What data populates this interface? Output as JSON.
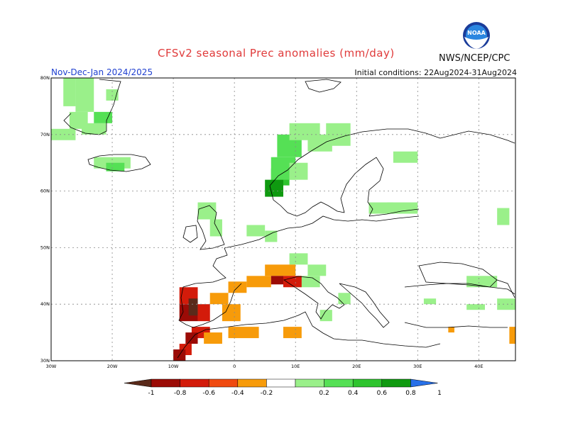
{
  "title": "CFSv2 seasonal Prec anomalies (mm/day)",
  "period": "Nov-Dec-Jan 2024/2025",
  "initial_conditions": "Initial conditions: 22Aug2024-31Aug2024",
  "agency": "NWS/NCEP/CPC",
  "logo_text": "NOAA",
  "axes": {
    "lon_labels": [
      "30W",
      "20W",
      "10W",
      "0",
      "10E",
      "20E",
      "30E",
      "40E"
    ],
    "lat_labels": [
      "30N",
      "40N",
      "50N",
      "60N",
      "70N",
      "80N"
    ],
    "lon_values": [
      -30,
      -20,
      -10,
      0,
      10,
      20,
      30,
      40
    ],
    "lat_values": [
      30,
      40,
      50,
      60,
      70,
      80
    ]
  },
  "colorbar": {
    "labels": [
      "-1",
      "-0.8",
      "-0.6",
      "-0.4",
      "-0.2",
      "0.2",
      "0.4",
      "0.6",
      "0.8",
      "1"
    ],
    "colors": [
      "#5a2a1a",
      "#9b0b06",
      "#d31b0a",
      "#f04a10",
      "#f79b0a",
      "#ffffff",
      "#9af08a",
      "#55e055",
      "#2ec42e",
      "#0f9a10",
      "#2870e8"
    ]
  },
  "chart_data": {
    "type": "heatmap",
    "title": "CFSv2 seasonal Prec anomalies (mm/day)",
    "xlim": [
      -30,
      46
    ],
    "ylim": [
      30,
      80
    ],
    "grid": true,
    "note_cells": "cells are [lon_west, lat_south, lon_east, lat_north, anomaly_mm_per_day]",
    "cells": [
      [
        -28,
        75,
        -26,
        80,
        0.3
      ],
      [
        -26,
        74,
        -23,
        80,
        0.3
      ],
      [
        -27,
        71,
        -24,
        74,
        0.3
      ],
      [
        -25,
        70,
        -21,
        72,
        0.3
      ],
      [
        -30,
        69,
        -26,
        71,
        0.3
      ],
      [
        -21,
        76,
        -19,
        78,
        0.3
      ],
      [
        -23,
        72,
        -20,
        74,
        0.4
      ],
      [
        -23,
        64,
        -17,
        66,
        0.3
      ],
      [
        -21,
        63.5,
        -18,
        65,
        0.4
      ],
      [
        7,
        66,
        11,
        70,
        0.4
      ],
      [
        9,
        69,
        14,
        72,
        0.3
      ],
      [
        12,
        67,
        16,
        70,
        0.3
      ],
      [
        15,
        68,
        19,
        72,
        0.3
      ],
      [
        6,
        61,
        9,
        64,
        0.6
      ],
      [
        5,
        59,
        8,
        62,
        0.8
      ],
      [
        6,
        62,
        10,
        66,
        0.4
      ],
      [
        9,
        62,
        12,
        65,
        0.3
      ],
      [
        26,
        65,
        30,
        67,
        0.3
      ],
      [
        22,
        56,
        26,
        58,
        0.3
      ],
      [
        25,
        56,
        30,
        58,
        0.3
      ],
      [
        43,
        54,
        45,
        57,
        0.3
      ],
      [
        -6,
        55,
        -3,
        58,
        0.3
      ],
      [
        -4,
        52,
        -2,
        55,
        0.3
      ],
      [
        2,
        52,
        5,
        54,
        0.3
      ],
      [
        5,
        51,
        7,
        53,
        0.3
      ],
      [
        9,
        47,
        12,
        49,
        0.3
      ],
      [
        12,
        45,
        15,
        47,
        0.3
      ],
      [
        10,
        43,
        14,
        45,
        0.3
      ],
      [
        17,
        40,
        19,
        42,
        0.3
      ],
      [
        14,
        37,
        16,
        39,
        0.3
      ],
      [
        38,
        43,
        43,
        45,
        0.3
      ],
      [
        31,
        40,
        33,
        41,
        0.3
      ],
      [
        38,
        39,
        41,
        40,
        0.3
      ],
      [
        43,
        39,
        46,
        41,
        0.3
      ],
      [
        5,
        45,
        10,
        47,
        -0.3
      ],
      [
        2,
        43,
        6,
        45,
        -0.3
      ],
      [
        8,
        43,
        11,
        45,
        -0.5
      ],
      [
        6,
        43.5,
        8,
        45,
        -0.7
      ],
      [
        -1,
        42,
        2,
        44,
        -0.3
      ],
      [
        -9,
        40,
        -6,
        43,
        -0.6
      ],
      [
        -9,
        37,
        -6,
        40,
        -0.8
      ],
      [
        -7.5,
        38,
        -6,
        41,
        -0.9
      ],
      [
        -6,
        37,
        -4,
        40,
        -0.5
      ],
      [
        -4,
        40,
        -1,
        42,
        -0.3
      ],
      [
        -2,
        37,
        1,
        40,
        -0.3
      ],
      [
        -7,
        34,
        -4,
        36,
        -0.5
      ],
      [
        -8,
        33,
        -6,
        35,
        -0.8
      ],
      [
        -9,
        31,
        -7,
        33,
        -0.6
      ],
      [
        -10,
        30,
        -8,
        32,
        -0.7
      ],
      [
        -5,
        33,
        -2,
        35,
        -0.3
      ],
      [
        -1,
        34,
        4,
        36,
        -0.3
      ],
      [
        8,
        34,
        11,
        36,
        -0.3
      ],
      [
        35,
        35,
        36,
        36,
        -0.3
      ],
      [
        45,
        33,
        46,
        36,
        -0.3
      ]
    ]
  }
}
